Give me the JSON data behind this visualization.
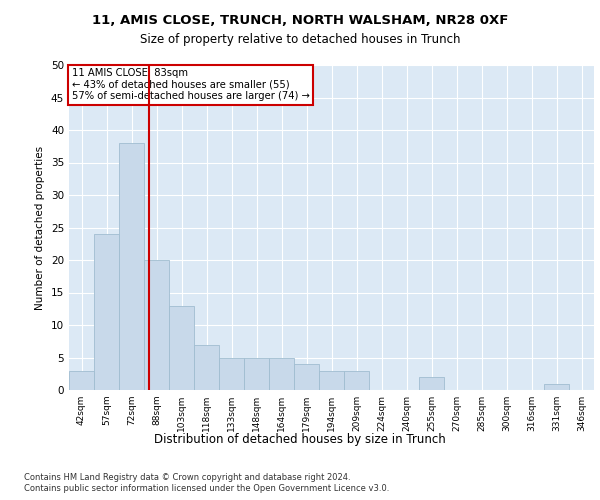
{
  "title1": "11, AMIS CLOSE, TRUNCH, NORTH WALSHAM, NR28 0XF",
  "title2": "Size of property relative to detached houses in Trunch",
  "xlabel": "Distribution of detached houses by size in Trunch",
  "ylabel": "Number of detached properties",
  "bar_labels": [
    "42sqm",
    "57sqm",
    "72sqm",
    "88sqm",
    "103sqm",
    "118sqm",
    "133sqm",
    "148sqm",
    "164sqm",
    "179sqm",
    "194sqm",
    "209sqm",
    "224sqm",
    "240sqm",
    "255sqm",
    "270sqm",
    "285sqm",
    "300sqm",
    "316sqm",
    "331sqm",
    "346sqm"
  ],
  "bar_values": [
    3,
    24,
    38,
    20,
    13,
    7,
    5,
    5,
    5,
    4,
    3,
    3,
    0,
    0,
    2,
    0,
    0,
    0,
    0,
    1,
    0
  ],
  "bar_color": "#c8d9ea",
  "bar_edgecolor": "#a0bdd0",
  "vline_color": "#cc0000",
  "annotation_box_color": "#cc0000",
  "property_line_label": "11 AMIS CLOSE: 83sqm",
  "annotation_line1": "← 43% of detached houses are smaller (55)",
  "annotation_line2": "57% of semi-detached houses are larger (74) →",
  "ylim": [
    0,
    50
  ],
  "yticks": [
    0,
    5,
    10,
    15,
    20,
    25,
    30,
    35,
    40,
    45,
    50
  ],
  "plot_bg_color": "#dce9f5",
  "footer1": "Contains HM Land Registry data © Crown copyright and database right 2024.",
  "footer2": "Contains public sector information licensed under the Open Government Licence v3.0."
}
